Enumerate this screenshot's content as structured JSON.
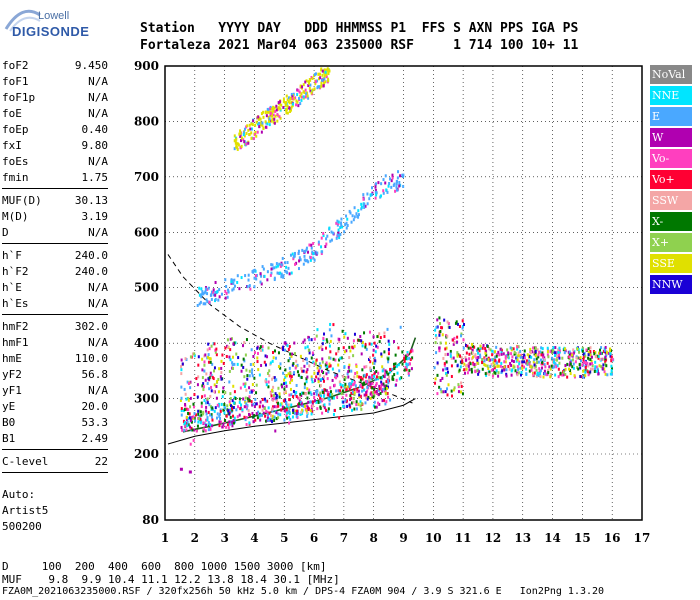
{
  "logo": {
    "word": "Lowell",
    "name": "DIGISONDE"
  },
  "header": {
    "line1": "Station   YYYY DAY   DDD HHMMSS P1  FFS S AXN PPS IGA PS",
    "line2": "Fortaleza 2021 Mar04 063 235000 RSF     1 714 100 10+ 11"
  },
  "params": {
    "group1": [
      {
        "name": "foF2",
        "value": "9.450"
      },
      {
        "name": "foF1",
        "value": "N/A"
      },
      {
        "name": "foF1p",
        "value": "N/A"
      },
      {
        "name": "foE",
        "value": "N/A"
      },
      {
        "name": "foEp",
        "value": "0.40"
      },
      {
        "name": "fxI",
        "value": "9.80"
      },
      {
        "name": "foEs",
        "value": "N/A"
      },
      {
        "name": "fmin",
        "value": "1.75"
      }
    ],
    "group2": [
      {
        "name": "MUF(D)",
        "value": "30.13"
      },
      {
        "name": "M(D)",
        "value": "3.19"
      },
      {
        "name": "D",
        "value": "N/A"
      }
    ],
    "group3": [
      {
        "name": "h`F",
        "value": "240.0"
      },
      {
        "name": "h`F2",
        "value": "240.0"
      },
      {
        "name": "h`E",
        "value": "N/A"
      },
      {
        "name": "h`Es",
        "value": "N/A"
      }
    ],
    "group4": [
      {
        "name": "hmF2",
        "value": "302.0"
      },
      {
        "name": "hmF1",
        "value": "N/A"
      },
      {
        "name": "hmE",
        "value": "110.0"
      },
      {
        "name": "yF2",
        "value": "56.8"
      },
      {
        "name": "yF1",
        "value": "N/A"
      },
      {
        "name": "yE",
        "value": "20.0"
      },
      {
        "name": "B0",
        "value": "53.3"
      },
      {
        "name": "B1",
        "value": "2.49"
      }
    ],
    "group5": [
      {
        "name": "C-level",
        "value": "22"
      }
    ],
    "auto": [
      "Auto:",
      "Artist5",
      "500200"
    ]
  },
  "legend": [
    {
      "label": "NoVal",
      "color": "#888888"
    },
    {
      "label": "NNE",
      "color": "#00e5ff"
    },
    {
      "label": "E",
      "color": "#4aa8ff"
    },
    {
      "label": "W",
      "color": "#b000b0"
    },
    {
      "label": "Vo-",
      "color": "#ff3fbf"
    },
    {
      "label": "Vo+",
      "color": "#ff0033"
    },
    {
      "label": "SSW",
      "color": "#f4a6a6"
    },
    {
      "label": "X-",
      "color": "#007800"
    },
    {
      "label": "X+",
      "color": "#8fd14f"
    },
    {
      "label": "SSE",
      "color": "#e0e000"
    },
    {
      "label": "NNW",
      "color": "#1a00d6"
    }
  ],
  "footer": {
    "d_row": "D     100  200  400  600  800 1000 1500 3000 [km]",
    "muf_row": "MUF    9.8  9.9 10.4 11.1 12.2 13.8 18.4 30.1 [MHz]",
    "file_row": "FZA0M_2021063235000.RSF / 320fx256h 50 kHz 5.0 km / DPS-4 FZA0M 904 / 3.9 S 321.6 E   Ion2Png 1.3.20"
  },
  "chart_data": {
    "type": "scatter",
    "x_ticks": [
      "1",
      "2",
      "3",
      "4",
      "5",
      "6",
      "7",
      "8",
      "9",
      "10",
      "11",
      "12",
      "13",
      "14",
      "15",
      "16",
      "17"
    ],
    "y_ticks": [
      "80",
      "200",
      "300",
      "400",
      "500",
      "600",
      "700",
      "800",
      "900"
    ],
    "xlim": [
      1,
      17
    ],
    "ylim": [
      80,
      900
    ],
    "grid": true,
    "legend_position": "right",
    "series": [
      {
        "color_key": "X-",
        "type": "profile-line",
        "points": [
          [
            1.6,
            240
          ],
          [
            2.5,
            250
          ],
          [
            3.5,
            262
          ],
          [
            4.5,
            275
          ],
          [
            5.5,
            288
          ],
          [
            6.5,
            302
          ],
          [
            7.5,
            320
          ],
          [
            8.5,
            345
          ],
          [
            9.2,
            380
          ],
          [
            9.4,
            410
          ]
        ]
      },
      {
        "color_key": "X-",
        "type": "lower-line",
        "points": [
          [
            1.1,
            218
          ],
          [
            2,
            232
          ],
          [
            3,
            242
          ],
          [
            4,
            250
          ],
          [
            5,
            256
          ],
          [
            6,
            262
          ],
          [
            7,
            268
          ],
          [
            8,
            274
          ],
          [
            9,
            288
          ],
          [
            9.4,
            300
          ]
        ]
      },
      {
        "color_key": "NoVal",
        "type": "dashed-line",
        "points": [
          [
            1.1,
            560
          ],
          [
            1.6,
            520
          ],
          [
            2.5,
            470
          ],
          [
            3.5,
            430
          ],
          [
            4.5,
            400
          ],
          [
            5.5,
            375
          ],
          [
            6.5,
            350
          ],
          [
            7.5,
            330
          ],
          [
            8.5,
            310
          ],
          [
            9.3,
            292
          ]
        ]
      },
      {
        "color_key": "E",
        "type": "o-trace",
        "points": [
          [
            1.6,
            262
          ],
          [
            2.5,
            268
          ],
          [
            3.5,
            275
          ],
          [
            4.5,
            282
          ],
          [
            5.5,
            290
          ],
          [
            6.5,
            300
          ],
          [
            7.5,
            315
          ],
          [
            8.5,
            340
          ],
          [
            9.3,
            372
          ]
        ]
      },
      {
        "color_key": "E",
        "type": "multi-hop",
        "points": [
          [
            2,
            485
          ],
          [
            3,
            500
          ],
          [
            4,
            520
          ],
          [
            5,
            540
          ],
          [
            6,
            570
          ],
          [
            7,
            620
          ],
          [
            8,
            680
          ],
          [
            9,
            700
          ]
        ]
      },
      {
        "color_key": "SSE",
        "type": "multi-hop",
        "points": [
          [
            3.3,
            760
          ],
          [
            4.2,
            800
          ],
          [
            5,
            830
          ],
          [
            6,
            870
          ],
          [
            6.5,
            895
          ]
        ]
      },
      {
        "color_key": "NNE",
        "type": "spread-f",
        "points": [
          [
            10,
            380
          ],
          [
            11,
            375
          ],
          [
            12,
            370
          ],
          [
            13,
            370
          ],
          [
            14,
            368
          ],
          [
            15,
            368
          ],
          [
            16,
            370
          ]
        ]
      },
      {
        "color_key": "W",
        "type": "spread-f",
        "points": [
          [
            1.5,
            305
          ],
          [
            2.5,
            335
          ],
          [
            3.5,
            345
          ],
          [
            4.5,
            330
          ],
          [
            5.5,
            340
          ],
          [
            6.5,
            370
          ],
          [
            7.5,
            350
          ],
          [
            8.5,
            360
          ]
        ]
      },
      {
        "color_key": "W",
        "type": "isolated",
        "points": [
          [
            1.5,
            175
          ],
          [
            1.8,
            170
          ]
        ]
      }
    ]
  }
}
